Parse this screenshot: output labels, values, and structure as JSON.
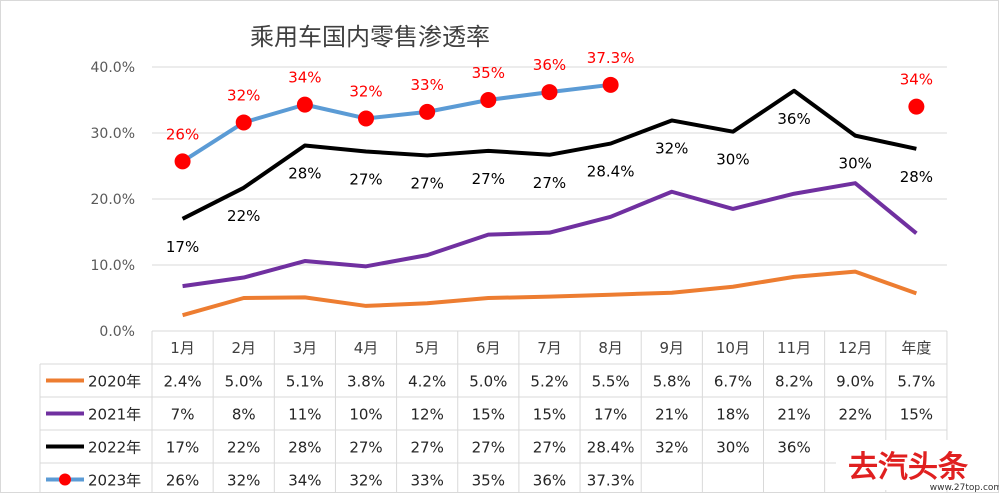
{
  "chart_data": {
    "type": "line",
    "title": "乘用车国内零售渗透率",
    "categories": [
      "1月",
      "2月",
      "3月",
      "4月",
      "5月",
      "6月",
      "7月",
      "8月",
      "9月",
      "10月",
      "11月",
      "12月",
      "年度"
    ],
    "ylim": [
      0,
      40
    ],
    "yticks": [
      "0.0%",
      "10.0%",
      "20.0%",
      "30.0%",
      "40.0%"
    ],
    "grid": true,
    "legend": "data-table",
    "series": [
      {
        "name": "2020年",
        "color": "#ED7D31",
        "marker": "none",
        "values": [
          2.4,
          5.0,
          5.1,
          3.8,
          4.2,
          5.0,
          5.2,
          5.5,
          5.8,
          6.7,
          8.2,
          9.0,
          5.7
        ],
        "labels": [
          "2.4%",
          "5.0%",
          "5.1%",
          "3.8%",
          "4.2%",
          "5.0%",
          "5.2%",
          "5.5%",
          "5.8%",
          "6.7%",
          "8.2%",
          "9.0%",
          "5.7%"
        ]
      },
      {
        "name": "2021年",
        "color": "#7030A0",
        "marker": "none",
        "values": [
          6.8,
          8.1,
          10.6,
          9.8,
          11.5,
          14.6,
          14.9,
          17.3,
          21.1,
          18.5,
          20.8,
          22.4,
          14.8
        ],
        "labels": [
          "7%",
          "8%",
          "11%",
          "10%",
          "12%",
          "15%",
          "15%",
          "17%",
          "21%",
          "18%",
          "21%",
          "22%",
          "15%"
        ]
      },
      {
        "name": "2022年",
        "color": "#000000",
        "marker": "none",
        "values": [
          17.0,
          21.7,
          28.1,
          27.2,
          26.6,
          27.3,
          26.7,
          28.4,
          31.9,
          30.2,
          36.4,
          29.6,
          27.6
        ],
        "labels": [
          "17%",
          "22%",
          "28%",
          "27%",
          "27%",
          "27%",
          "27%",
          "28.4%",
          "32%",
          "30%",
          "36%",
          "30%",
          "28%"
        ]
      },
      {
        "name": "2023年",
        "color": "#5B9BD5",
        "marker": "circle",
        "marker_color": "#FF0000",
        "values": [
          25.7,
          31.6,
          34.3,
          32.2,
          33.2,
          35.0,
          36.2,
          37.3,
          null,
          null,
          null,
          null,
          34.0
        ],
        "labels": [
          "26%",
          "32%",
          "34%",
          "32%",
          "33%",
          "35%",
          "36%",
          "37.3%",
          "",
          "",
          "",
          "",
          "34%"
        ]
      }
    ]
  },
  "watermark": {
    "text": "去汽头条",
    "sub": "www.27top.com"
  }
}
